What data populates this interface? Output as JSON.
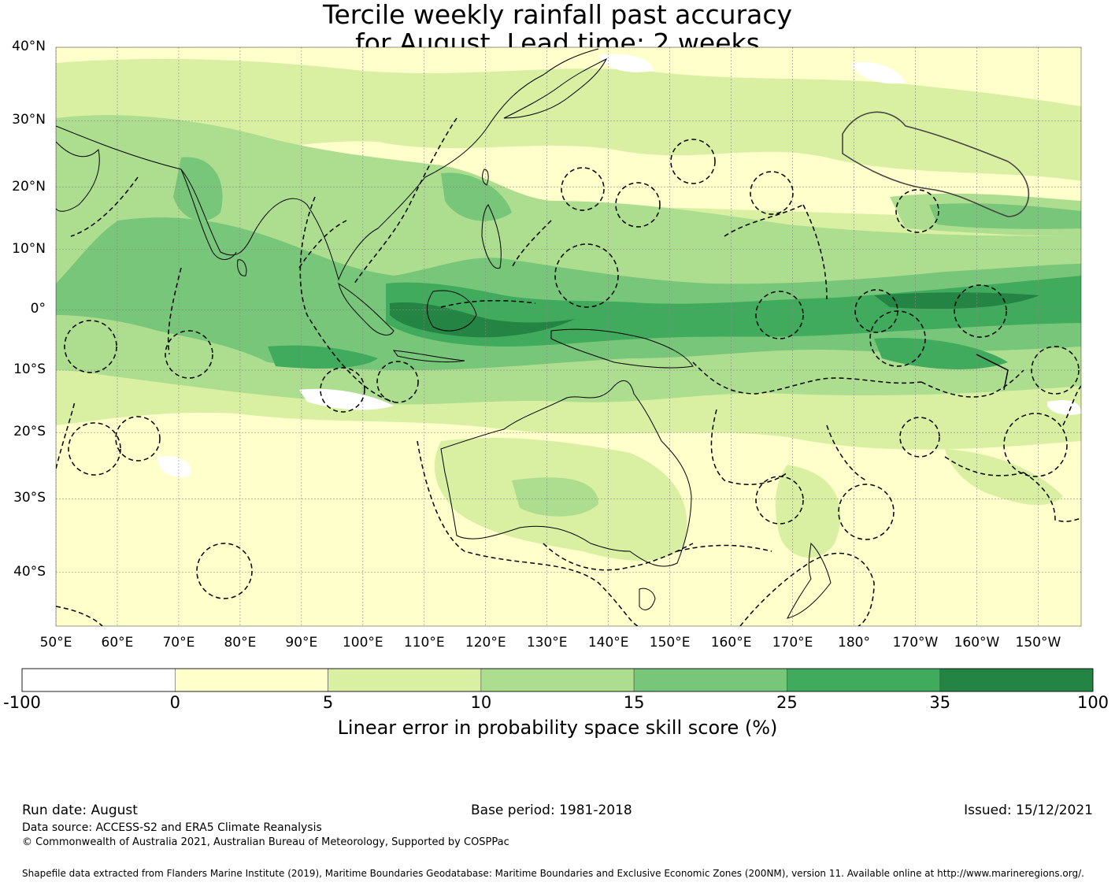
{
  "title_line1": "Tercile weekly rainfall past accuracy",
  "title_line2": "for August. Lead time: 2 weeks",
  "map": {
    "lat_labels": [
      {
        "text": "40°N",
        "lat": 40
      },
      {
        "text": "30°N",
        "lat": 30
      },
      {
        "text": "20°N",
        "lat": 20
      },
      {
        "text": "10°N",
        "lat": 10
      },
      {
        "text": "0°",
        "lat": 0
      },
      {
        "text": "10°S",
        "lat": -10
      },
      {
        "text": "20°S",
        "lat": -20
      },
      {
        "text": "30°S",
        "lat": -30
      },
      {
        "text": "40°S",
        "lat": -40
      }
    ],
    "lon_labels": [
      {
        "text": "50°E",
        "lon": 50
      },
      {
        "text": "60°E",
        "lon": 60
      },
      {
        "text": "70°E",
        "lon": 70
      },
      {
        "text": "80°E",
        "lon": 80
      },
      {
        "text": "90°E",
        "lon": 90
      },
      {
        "text": "100°E",
        "lon": 100
      },
      {
        "text": "110°E",
        "lon": 110
      },
      {
        "text": "120°E",
        "lon": 120
      },
      {
        "text": "130°E",
        "lon": 130
      },
      {
        "text": "140°E",
        "lon": 140
      },
      {
        "text": "150°E",
        "lon": 150
      },
      {
        "text": "160°E",
        "lon": 160
      },
      {
        "text": "170°E",
        "lon": 170
      },
      {
        "text": "180°",
        "lon": 180
      },
      {
        "text": "170°W",
        "lon": 190
      },
      {
        "text": "160°W",
        "lon": 200
      },
      {
        "text": "150°W",
        "lon": 210
      }
    ],
    "colors": {
      "ocean_base": "#ffffcc",
      "land_outline": "#000000"
    }
  },
  "colorbar": {
    "title": "Linear error in probability space skill score (%)",
    "ticks": [
      "-100",
      "0",
      "5",
      "10",
      "15",
      "25",
      "35",
      "100"
    ],
    "colors": [
      "#ffffff",
      "#ffffcc",
      "#d9f0a3",
      "#addd8e",
      "#78c679",
      "#41ab5d",
      "#238443"
    ]
  },
  "footer": {
    "run_date": "Run date: August",
    "base_period": "Base period: 1981-2018",
    "issued": "Issued: 15/12/2021",
    "data_source": "Data source: ACCESS-S2 and ERA5 Climate Reanalysis",
    "copyright": "© Commonwealth of Australia 2021, Australian Bureau of Meteorology, Supported by COSPPac",
    "shapefile": "Shapefile data extracted from Flanders Marine Institute (2019), Maritime Boundaries Geodatabase: Maritime Boundaries and Exclusive Economic Zones (200NM), version 11. Available online at http://www.marineregions.org/."
  }
}
